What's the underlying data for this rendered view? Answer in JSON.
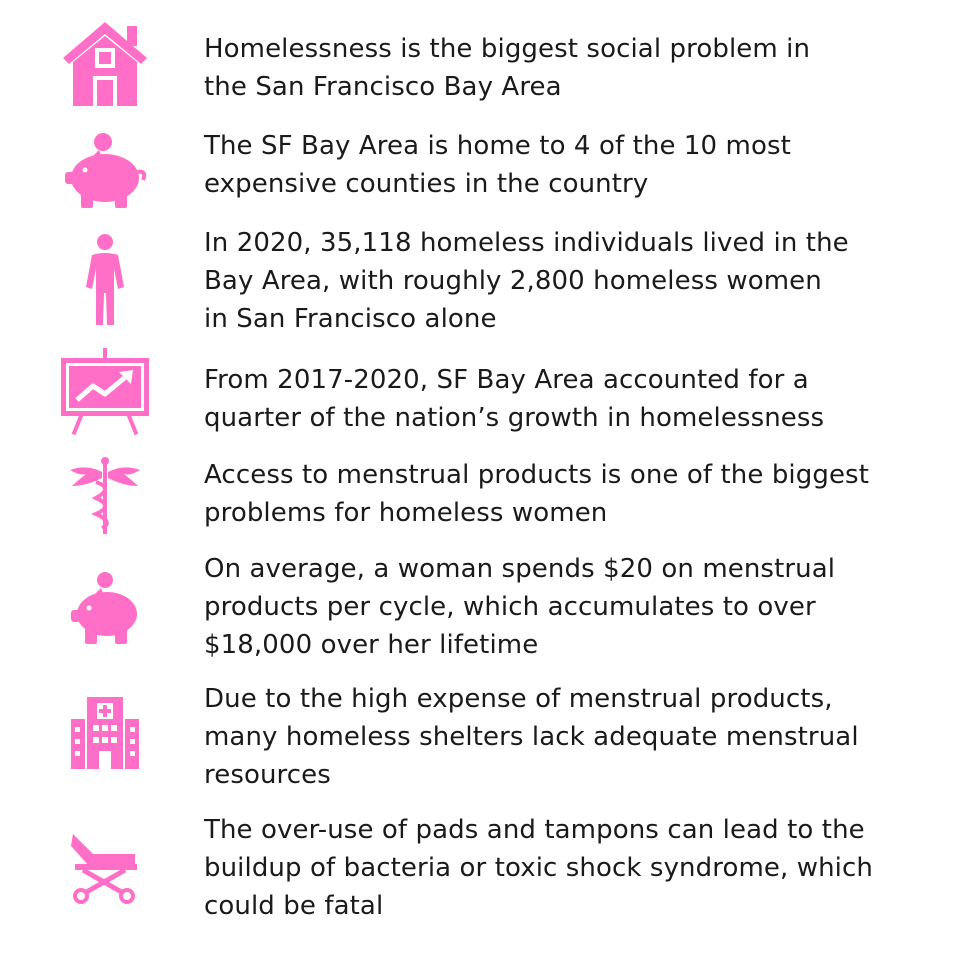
{
  "colors": {
    "icon_pink": "#ff6ec7",
    "text": "#1a1a1a",
    "background": "#ffffff"
  },
  "facts": [
    {
      "icon": "house-icon",
      "text": "Homelessness is the biggest social problem in\nthe San Francisco Bay Area"
    },
    {
      "icon": "piggy-bank-icon",
      "text": "The SF Bay Area is home to 4 of the 10 most\nexpensive counties in the country"
    },
    {
      "icon": "woman-icon",
      "text": "In 2020, 35,118 homeless individuals lived in the\nBay Area, with roughly 2,800 homeless women\nin San Francisco alone"
    },
    {
      "icon": "growth-chart-icon",
      "text": "From 2017-2020, SF Bay Area accounted for a\nquarter of the nation’s growth in homelessness"
    },
    {
      "icon": "caduceus-icon",
      "text": "Access to menstrual products is one of the biggest\nproblems for homeless women"
    },
    {
      "icon": "piggy-bank-icon",
      "text": "On average, a woman spends $20 on menstrual\nproducts per cycle, which accumulates to over\n$18,000 over her lifetime"
    },
    {
      "icon": "hospital-icon",
      "text": "Due to the high expense of menstrual products,\nmany homeless shelters lack adequate menstrual\nresources"
    },
    {
      "icon": "stretcher-icon",
      "text": "The over-use of pads and tampons can lead to the\nbuildup of bacteria or toxic shock syndrome, which\ncould be fatal"
    }
  ]
}
